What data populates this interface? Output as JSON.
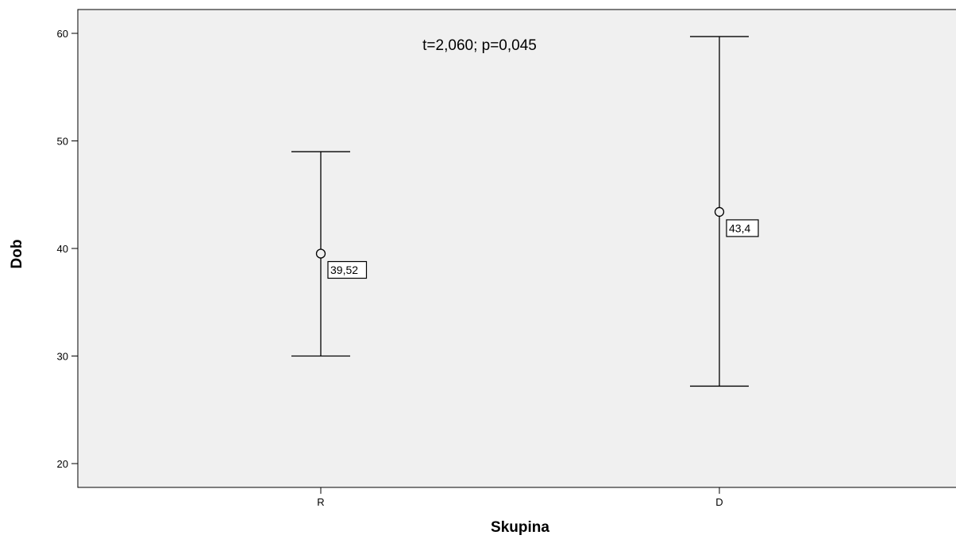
{
  "chart_data": {
    "type": "error-bar",
    "xlabel": "Skupina",
    "ylabel": "Dob",
    "annotation": "t=2,060; p=0,045",
    "ylim": [
      18,
      62
    ],
    "yticks": [
      20,
      30,
      40,
      50,
      60
    ],
    "grid": false,
    "colors": {
      "plot_background": "#f0f0f0",
      "line": "#000000"
    },
    "categories": [
      "R",
      "D"
    ],
    "points": [
      {
        "category": "R",
        "mean": 39.52,
        "mean_label": "39,52",
        "lower": 30.0,
        "upper": 49.0
      },
      {
        "category": "D",
        "mean": 43.4,
        "mean_label": "43,4",
        "lower": 27.2,
        "upper": 59.7
      }
    ]
  }
}
